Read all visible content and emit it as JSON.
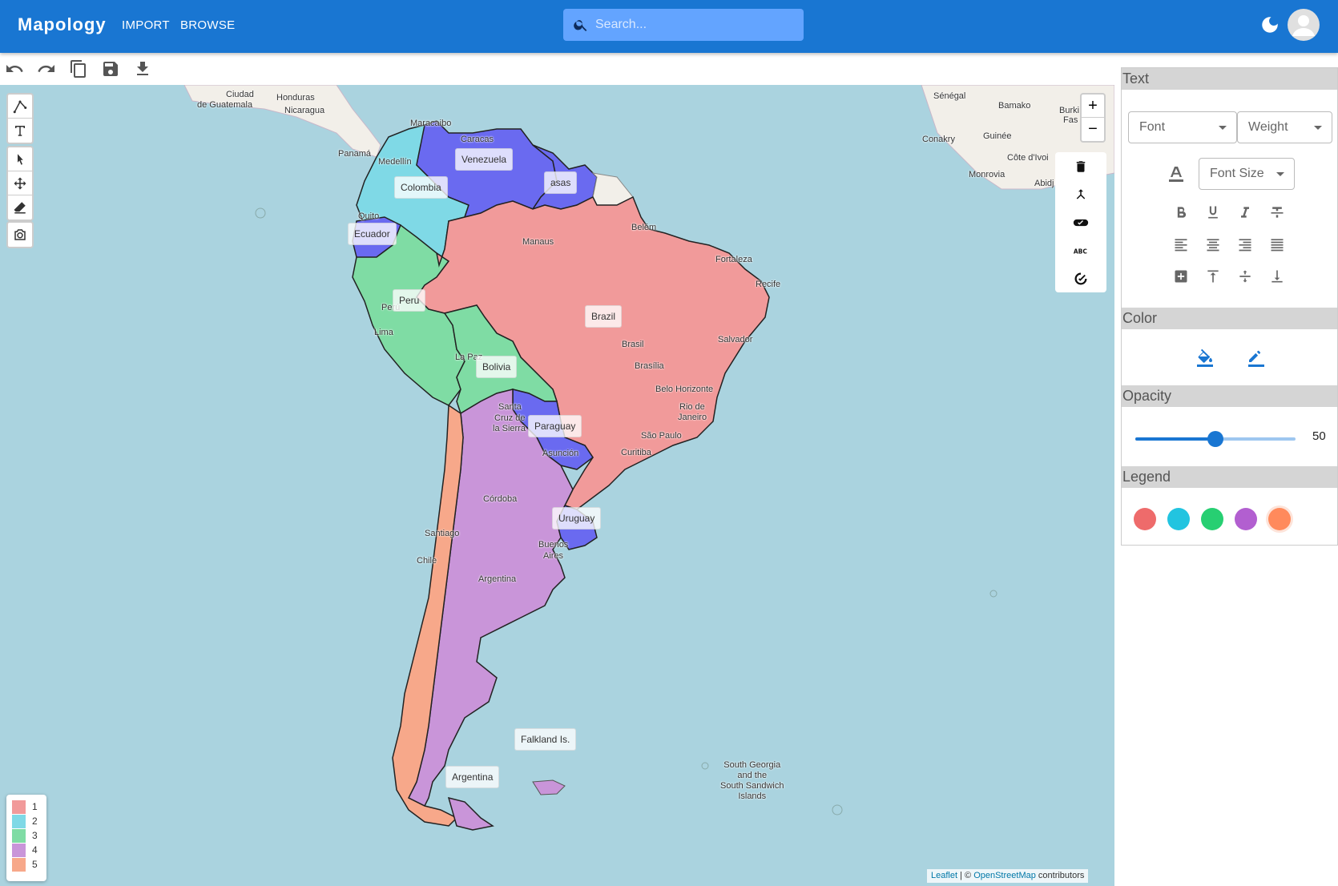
{
  "app": {
    "brand": "Mapology",
    "nav": [
      "IMPORT",
      "BROWSE"
    ],
    "search_placeholder": "Search..."
  },
  "toolbar": [
    "undo-icon",
    "redo-icon",
    "copy-icon",
    "save-icon",
    "download-icon"
  ],
  "map": {
    "country_tags": [
      {
        "label": "Venezuela",
        "group": 5
      },
      {
        "label": "asas",
        "group": 5
      },
      {
        "label": "Colombia",
        "group": 2
      },
      {
        "label": "Ecuador",
        "group": 5
      },
      {
        "label": "Peru",
        "group": 3
      },
      {
        "label": "Brazil",
        "group": 1
      },
      {
        "label": "Bolivia",
        "group": 3
      },
      {
        "label": "Paraguay",
        "group": 5
      },
      {
        "label": "Uruguay",
        "group": 5
      },
      {
        "label": "Falkland Is.",
        "group": 4
      },
      {
        "label": "Argentina",
        "group": 4
      }
    ],
    "city_labels": [
      "Ciudad de Guatemala",
      "Honduras",
      "Nicaragua",
      "Panamá",
      "Maracaibo",
      "Caracas",
      "Medellín",
      "Quito",
      "Manaus",
      "Belém",
      "Fortaleza",
      "Recife",
      "Salvador",
      "Brasil",
      "Brasília",
      "Belo Horizonte",
      "Rio de Janeiro",
      "São Paulo",
      "Curitiba",
      "Lima",
      "Perú",
      "La Paz",
      "Santa Cruz de la Sierra",
      "Asunción",
      "Córdoba",
      "Santiago",
      "Chile",
      "Buenos Aires",
      "Argentina",
      "Sénégal",
      "Bamako",
      "Burki",
      "Fas",
      "Guinée",
      "Conakry",
      "Côte d'Ivoi",
      "Monrovia",
      "Abidj",
      "South Georgia and the South Sandwich Islands"
    ],
    "attribution": {
      "leaflet": "Leaflet",
      "sep": "| ©",
      "osm": "OpenStreetMap",
      "suffix": "contributors"
    }
  },
  "legend_scale": [
    {
      "label": "1",
      "color": "#f19a9a"
    },
    {
      "label": "2",
      "color": "#7fd9e6"
    },
    {
      "label": "3",
      "color": "#7fdca4"
    },
    {
      "label": "4",
      "color": "#c995d9"
    },
    {
      "label": "5",
      "color": "#f7a88a"
    }
  ],
  "panel": {
    "text_section": "Text",
    "font_label": "Font",
    "weight_label": "Weight",
    "font_size_label": "Font Size",
    "color_section": "Color",
    "opacity_section": "Opacity",
    "opacity_value": 50,
    "opacity_fraction": 0.5,
    "legend_section": "Legend",
    "legend_colors": [
      "#ee6b6b",
      "#22c4e0",
      "#27cf72",
      "#b25fd0",
      "#ff8a5c"
    ]
  },
  "colors": {
    "primary": "#1976d2",
    "ocean": "#aad3df",
    "land": "#f2efe9"
  }
}
